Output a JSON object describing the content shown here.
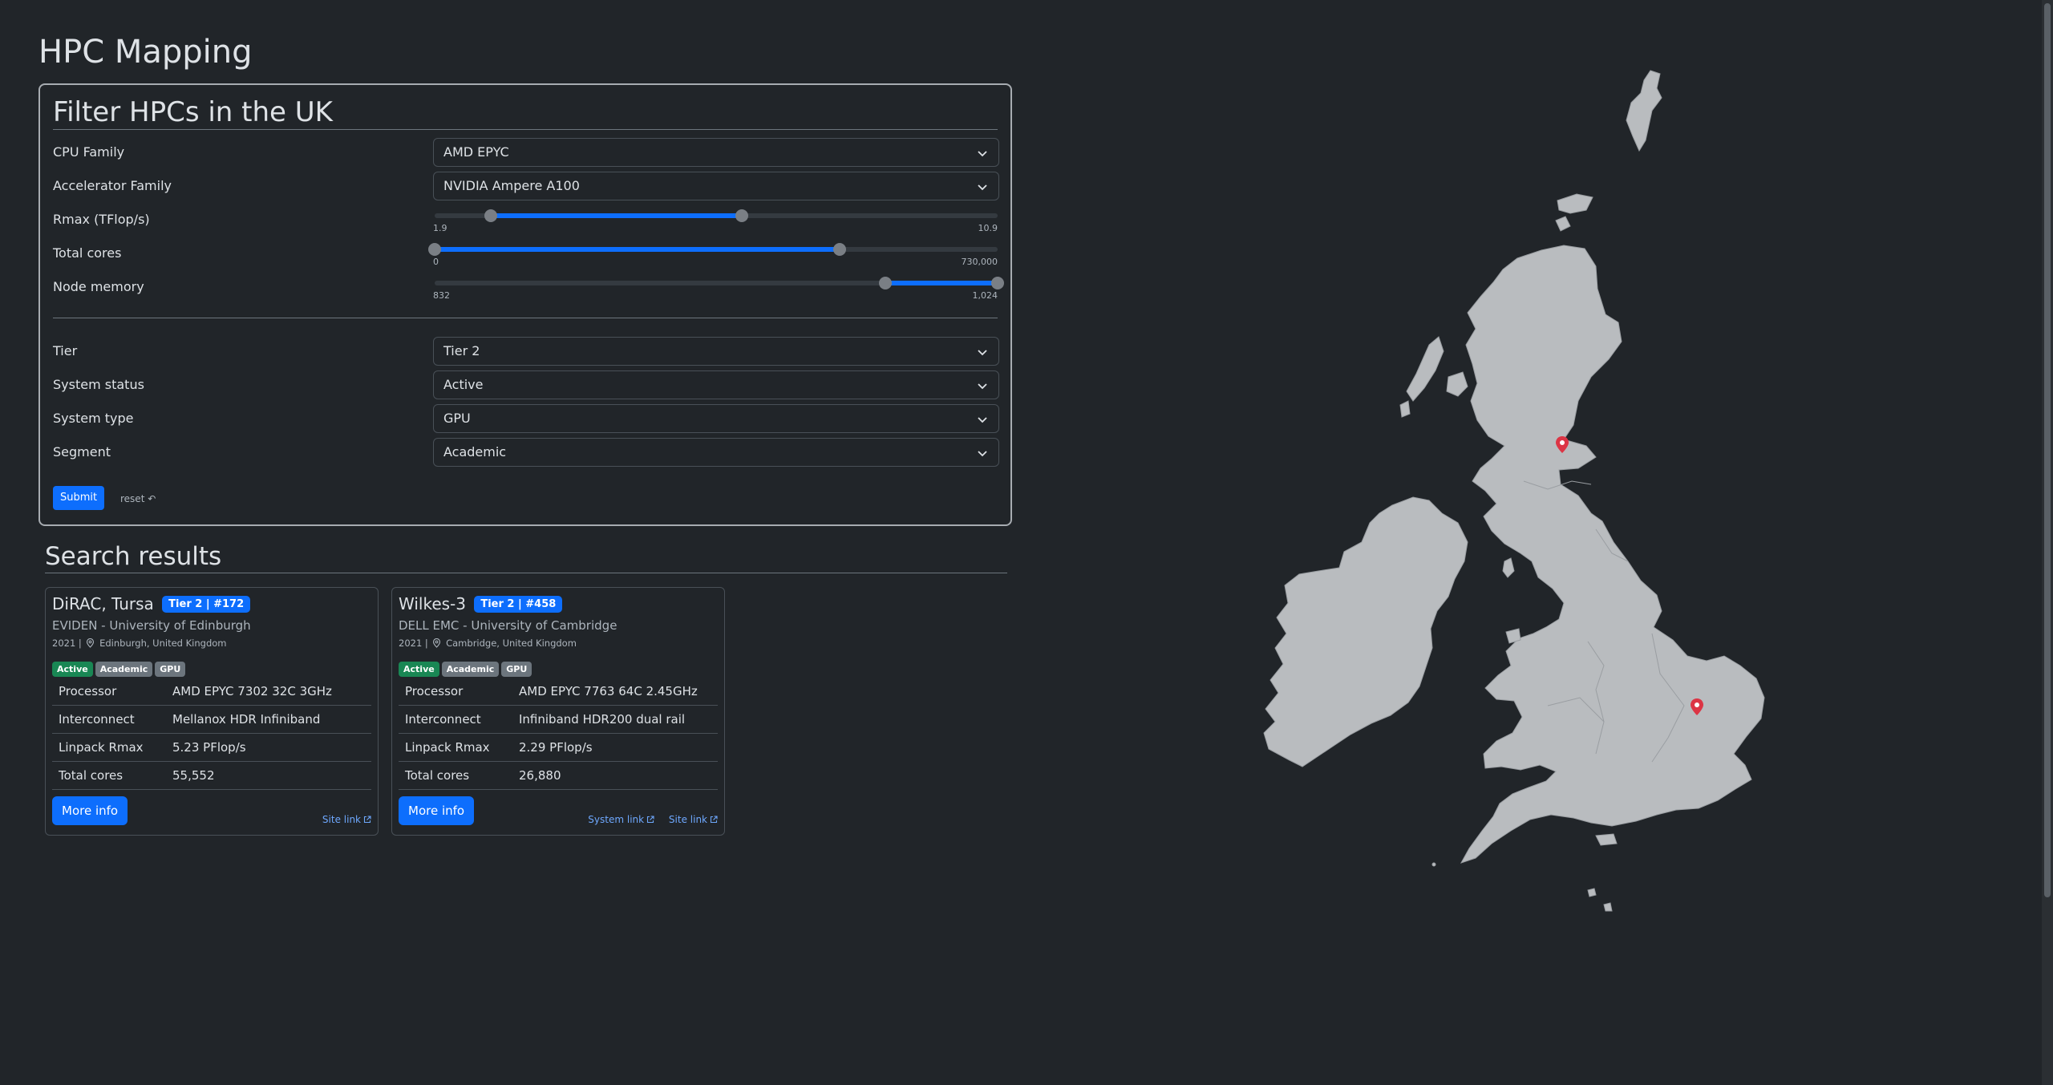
{
  "page": {
    "title": "HPC Mapping"
  },
  "filters": {
    "title": "Filter HPCs in the UK",
    "cpu_family": {
      "label": "CPU Family",
      "value": "AMD EPYC"
    },
    "accelerator_family": {
      "label": "Accelerator Family",
      "value": "NVIDIA Ampere A100"
    },
    "rmax": {
      "label": "Rmax (TFlop/s)",
      "min_label": "1.9",
      "max_label": "10.9",
      "low": 0.1,
      "high": 0.545
    },
    "total_cores": {
      "label": "Total cores",
      "min_label": "0",
      "max_label": "730,000",
      "low": 0.0,
      "high": 0.72
    },
    "node_memory": {
      "label": "Node memory",
      "min_label": "832",
      "max_label": "1,024",
      "low": 0.8,
      "high": 1.0
    },
    "tier": {
      "label": "Tier",
      "value": "Tier 2"
    },
    "system_status": {
      "label": "System status",
      "value": "Active"
    },
    "system_type": {
      "label": "System type",
      "value": "GPU"
    },
    "segment": {
      "label": "Segment",
      "value": "Academic"
    },
    "submit_label": "Submit",
    "reset_label": "reset ↶"
  },
  "results": {
    "title": "Search results",
    "cards": [
      {
        "name": "DiRAC, Tursa",
        "tier_badge": "Tier 2 | #172",
        "vendor": "EVIDEN - University of Edinburgh",
        "year": "2021 |",
        "location": "Edinburgh, United Kingdom",
        "badges": [
          "Active",
          "Academic",
          "GPU"
        ],
        "specs": [
          {
            "key": "Processor",
            "value": "AMD EPYC 7302 32C 3GHz"
          },
          {
            "key": "Interconnect",
            "value": "Mellanox HDR Infiniband"
          },
          {
            "key": "Linpack Rmax",
            "value": "5.23 PFlop/s"
          },
          {
            "key": "Total cores",
            "value": "55,552"
          }
        ],
        "more_label": "More info",
        "site_link": "Site link"
      },
      {
        "name": "Wilkes-3",
        "tier_badge": "Tier 2 | #458",
        "vendor": "DELL EMC - University of Cambridge",
        "year": "2021 |",
        "location": "Cambridge, United Kingdom",
        "badges": [
          "Active",
          "Academic",
          "GPU"
        ],
        "specs": [
          {
            "key": "Processor",
            "value": "AMD EPYC 7763 64C 2.45GHz"
          },
          {
            "key": "Interconnect",
            "value": "Infiniband HDR200 dual rail"
          },
          {
            "key": "Linpack Rmax",
            "value": "2.29 PFlop/s"
          },
          {
            "key": "Total cores",
            "value": "26,880"
          }
        ],
        "more_label": "More info",
        "system_link": "System link",
        "site_link": "Site link"
      }
    ]
  },
  "map": {
    "land_color": "#b9bcbf",
    "marker_color": "#dc3545",
    "markers": [
      "Edinburgh",
      "Cambridge"
    ]
  },
  "colors": {
    "background": "#212529",
    "accent": "#0d6efd",
    "success": "#198754",
    "secondary": "#6c757d"
  }
}
